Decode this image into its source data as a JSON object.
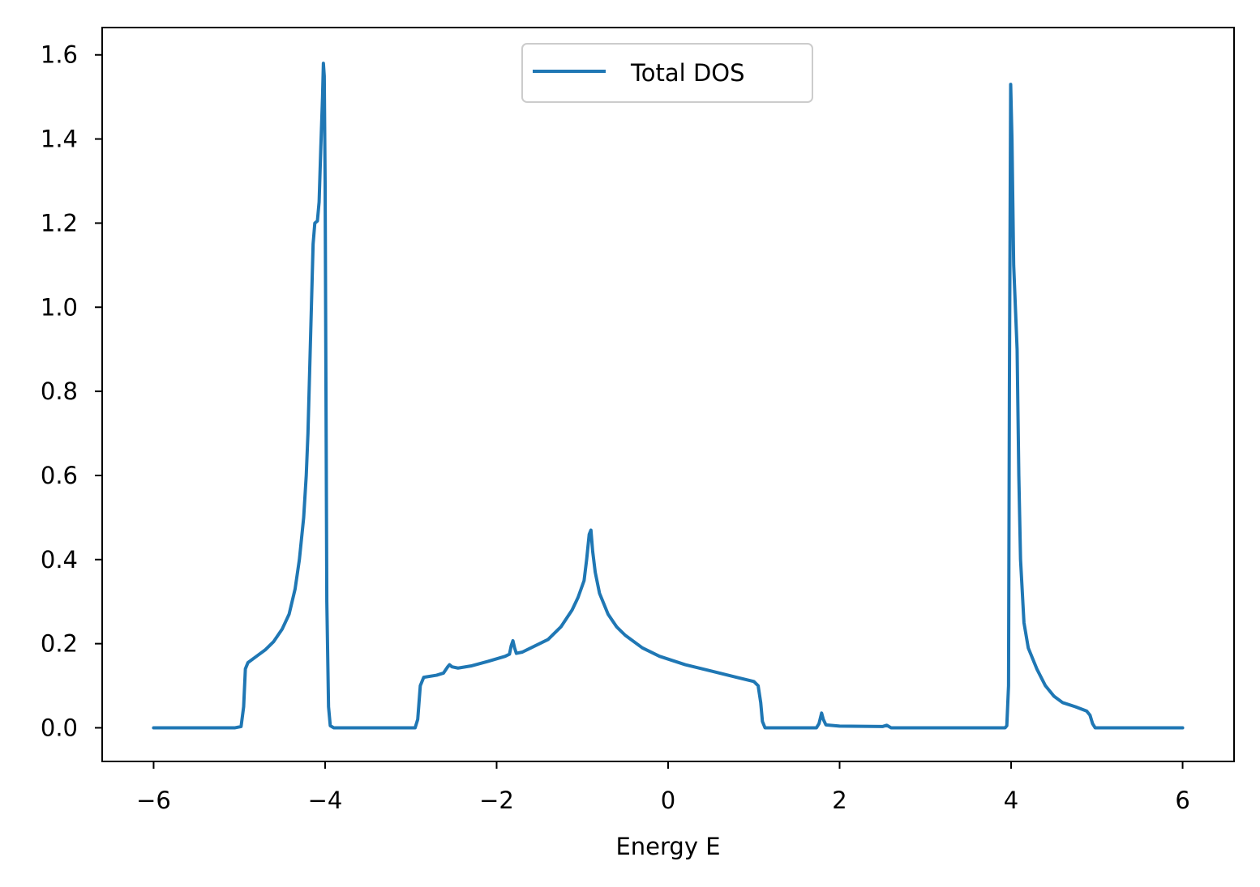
{
  "chart_data": {
    "type": "line",
    "title": "",
    "xlabel": "Energy E",
    "ylabel": "",
    "xlim": [
      -6.6,
      6.6
    ],
    "ylim": [
      -0.08,
      1.665
    ],
    "xticks": [
      -6,
      -4,
      -2,
      0,
      2,
      4,
      6
    ],
    "xtick_labels": [
      "−6",
      "−4",
      "−2",
      "0",
      "2",
      "4",
      "6"
    ],
    "yticks": [
      0.0,
      0.2,
      0.4,
      0.6,
      0.8,
      1.0,
      1.2,
      1.4,
      1.6
    ],
    "ytick_labels": [
      "0.0",
      "0.2",
      "0.4",
      "0.6",
      "0.8",
      "1.0",
      "1.2",
      "1.4",
      "1.6"
    ],
    "grid": false,
    "legend_position": "top-center",
    "series": [
      {
        "name": "Total DOS",
        "color": "#1f77b4",
        "points": [
          [
            -6.0,
            0.0
          ],
          [
            -5.05,
            0.0
          ],
          [
            -4.98,
            0.003
          ],
          [
            -4.95,
            0.05
          ],
          [
            -4.93,
            0.14
          ],
          [
            -4.9,
            0.155
          ],
          [
            -4.8,
            0.17
          ],
          [
            -4.7,
            0.185
          ],
          [
            -4.6,
            0.205
          ],
          [
            -4.5,
            0.235
          ],
          [
            -4.42,
            0.27
          ],
          [
            -4.35,
            0.33
          ],
          [
            -4.3,
            0.4
          ],
          [
            -4.25,
            0.5
          ],
          [
            -4.22,
            0.6
          ],
          [
            -4.2,
            0.7
          ],
          [
            -4.18,
            0.85
          ],
          [
            -4.16,
            1.0
          ],
          [
            -4.14,
            1.15
          ],
          [
            -4.12,
            1.2
          ],
          [
            -4.09,
            1.205
          ],
          [
            -4.07,
            1.25
          ],
          [
            -4.05,
            1.38
          ],
          [
            -4.03,
            1.5
          ],
          [
            -4.02,
            1.58
          ],
          [
            -4.01,
            1.55
          ],
          [
            -4.0,
            1.3
          ],
          [
            -3.99,
            0.8
          ],
          [
            -3.98,
            0.3
          ],
          [
            -3.96,
            0.05
          ],
          [
            -3.94,
            0.005
          ],
          [
            -3.9,
            0.0
          ],
          [
            -2.95,
            0.0
          ],
          [
            -2.92,
            0.02
          ],
          [
            -2.89,
            0.1
          ],
          [
            -2.85,
            0.12
          ],
          [
            -2.7,
            0.125
          ],
          [
            -2.62,
            0.13
          ],
          [
            -2.57,
            0.145
          ],
          [
            -2.55,
            0.15
          ],
          [
            -2.52,
            0.145
          ],
          [
            -2.45,
            0.142
          ],
          [
            -2.3,
            0.147
          ],
          [
            -2.1,
            0.158
          ],
          [
            -1.9,
            0.17
          ],
          [
            -1.85,
            0.175
          ],
          [
            -1.83,
            0.195
          ],
          [
            -1.81,
            0.207
          ],
          [
            -1.79,
            0.19
          ],
          [
            -1.77,
            0.177
          ],
          [
            -1.7,
            0.18
          ],
          [
            -1.6,
            0.19
          ],
          [
            -1.4,
            0.21
          ],
          [
            -1.25,
            0.24
          ],
          [
            -1.12,
            0.28
          ],
          [
            -1.05,
            0.31
          ],
          [
            -0.98,
            0.35
          ],
          [
            -0.95,
            0.4
          ],
          [
            -0.92,
            0.46
          ],
          [
            -0.9,
            0.47
          ],
          [
            -0.88,
            0.42
          ],
          [
            -0.85,
            0.37
          ],
          [
            -0.8,
            0.32
          ],
          [
            -0.7,
            0.27
          ],
          [
            -0.6,
            0.24
          ],
          [
            -0.5,
            0.22
          ],
          [
            -0.3,
            0.19
          ],
          [
            -0.1,
            0.17
          ],
          [
            0.2,
            0.15
          ],
          [
            0.5,
            0.135
          ],
          [
            0.8,
            0.12
          ],
          [
            1.0,
            0.11
          ],
          [
            1.05,
            0.1
          ],
          [
            1.08,
            0.06
          ],
          [
            1.1,
            0.015
          ],
          [
            1.13,
            0.0
          ],
          [
            1.73,
            0.0
          ],
          [
            1.76,
            0.01
          ],
          [
            1.79,
            0.035
          ],
          [
            1.81,
            0.02
          ],
          [
            1.84,
            0.007
          ],
          [
            2.0,
            0.004
          ],
          [
            2.5,
            0.003
          ],
          [
            2.55,
            0.006
          ],
          [
            2.6,
            0.0
          ],
          [
            3.93,
            0.0
          ],
          [
            3.95,
            0.005
          ],
          [
            3.97,
            0.1
          ],
          [
            3.98,
            0.8
          ],
          [
            3.995,
            1.53
          ],
          [
            4.01,
            1.4
          ],
          [
            4.03,
            1.1
          ],
          [
            4.05,
            1.0
          ],
          [
            4.07,
            0.9
          ],
          [
            4.09,
            0.6
          ],
          [
            4.11,
            0.4
          ],
          [
            4.15,
            0.25
          ],
          [
            4.2,
            0.19
          ],
          [
            4.3,
            0.14
          ],
          [
            4.4,
            0.1
          ],
          [
            4.5,
            0.075
          ],
          [
            4.6,
            0.06
          ],
          [
            4.75,
            0.05
          ],
          [
            4.88,
            0.04
          ],
          [
            4.92,
            0.03
          ],
          [
            4.95,
            0.01
          ],
          [
            4.98,
            0.0
          ],
          [
            6.0,
            0.0
          ]
        ]
      }
    ]
  }
}
